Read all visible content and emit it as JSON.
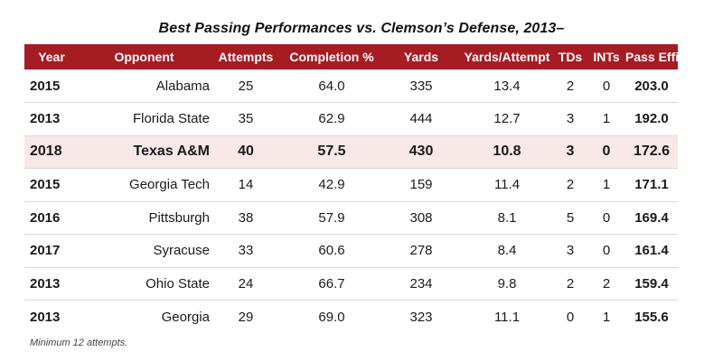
{
  "title": "Best Passing Performances vs. Clemson’s Defense, 2013–",
  "columns": [
    "Year",
    "Opponent",
    "Attempts",
    "Completion %",
    "Yards",
    "Yards/Attempt",
    "TDs",
    "INTs",
    "Pass Efficiency"
  ],
  "rows": [
    [
      "2015",
      "Alabama",
      "25",
      "64.0",
      "335",
      "13.4",
      "2",
      "0",
      "203.0"
    ],
    [
      "2013",
      "Florida State",
      "35",
      "62.9",
      "444",
      "12.7",
      "3",
      "1",
      "192.0"
    ],
    [
      "2018",
      "Texas A&M",
      "40",
      "57.5",
      "430",
      "10.8",
      "3",
      "0",
      "172.6"
    ],
    [
      "2015",
      "Georgia Tech",
      "14",
      "42.9",
      "159",
      "11.4",
      "2",
      "1",
      "171.1"
    ],
    [
      "2016",
      "Pittsburgh",
      "38",
      "57.9",
      "308",
      "8.1",
      "5",
      "0",
      "169.4"
    ],
    [
      "2017",
      "Syracuse",
      "33",
      "60.6",
      "278",
      "8.4",
      "3",
      "0",
      "161.4"
    ],
    [
      "2013",
      "Ohio State",
      "24",
      "66.7",
      "234",
      "9.8",
      "2",
      "2",
      "159.4"
    ],
    [
      "2013",
      "Georgia",
      "29",
      "69.0",
      "323",
      "11.1",
      "0",
      "1",
      "155.6"
    ]
  ],
  "highlight_row": 2,
  "footnote": "Minimum 12 attempts.",
  "colors": {
    "header_bg": "#a61c23",
    "highlight_bg": "#f8e8e8"
  }
}
